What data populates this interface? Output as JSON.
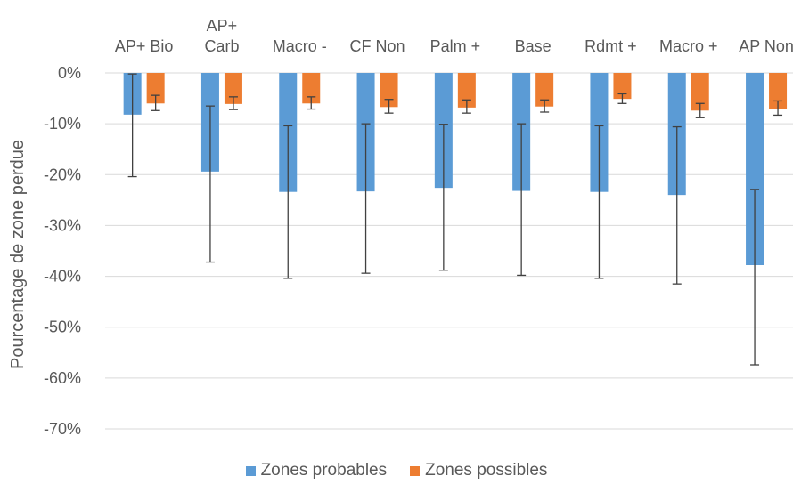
{
  "chart_data": {
    "type": "bar",
    "ylabel": "Pourcentage de zone perdue",
    "xlabel": "",
    "ylim": [
      -70,
      0
    ],
    "yticks": [
      0,
      -10,
      -20,
      -30,
      -40,
      -50,
      -60,
      -70
    ],
    "ytick_labels": [
      "0%",
      "-10%",
      "-20%",
      "-30%",
      "-40%",
      "-50%",
      "-60%",
      "-70%"
    ],
    "grid": true,
    "legend_position": "bottom",
    "categories": [
      [
        "AP+ Bio"
      ],
      [
        "AP+",
        "Carb"
      ],
      [
        "Macro -"
      ],
      [
        "CF Non"
      ],
      [
        "Palm +"
      ],
      [
        "Base"
      ],
      [
        "Rdmt +"
      ],
      [
        "Macro +"
      ],
      [
        "AP Non"
      ]
    ],
    "series": [
      {
        "name": "Zones probables",
        "color": "#5B9BD5",
        "values": [
          -8.2,
          -19.4,
          -23.4,
          -23.3,
          -22.6,
          -23.2,
          -23.4,
          -24.0,
          -37.8
        ],
        "error_low": [
          -20.4,
          -37.2,
          -40.4,
          -39.4,
          -38.8,
          -39.8,
          -40.4,
          -41.5,
          -57.4
        ],
        "error_high": [
          -0.2,
          -6.5,
          -10.4,
          -10.0,
          -10.1,
          -10.0,
          -10.4,
          -10.6,
          -22.9
        ]
      },
      {
        "name": "Zones possibles",
        "color": "#ED7D31",
        "values": [
          -6.0,
          -6.1,
          -6.0,
          -6.7,
          -6.8,
          -6.6,
          -5.1,
          -7.4,
          -7.0
        ],
        "error_low": [
          -7.4,
          -7.2,
          -7.1,
          -7.9,
          -7.9,
          -7.7,
          -6.0,
          -8.8,
          -8.3
        ],
        "error_high": [
          -4.4,
          -4.7,
          -4.7,
          -5.2,
          -5.3,
          -5.3,
          -4.1,
          -6.0,
          -5.5
        ]
      }
    ]
  }
}
